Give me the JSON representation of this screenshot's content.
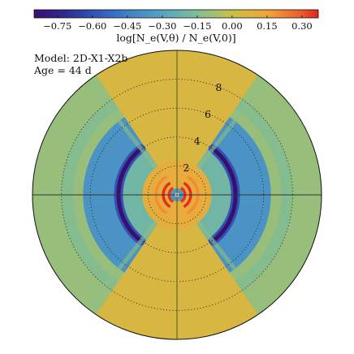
{
  "chart_data": {
    "type": "heatmap",
    "projection": "polar",
    "colorbar": {
      "location": "top",
      "label": "log[N_e(V,θ) / N_e(V,0)]",
      "range": [
        -0.85,
        0.37
      ],
      "ticks": [
        -0.75,
        -0.6,
        -0.45,
        -0.3,
        -0.15,
        0.0,
        0.15,
        0.3
      ],
      "tick_labels": [
        "−0.75",
        "−0.60",
        "−0.45",
        "−0.30",
        "−0.15",
        "0.00",
        "0.15",
        "0.30"
      ],
      "colormap_stops": [
        [
          -0.85,
          "#3b0f70"
        ],
        [
          -0.72,
          "#2c2a8c"
        ],
        [
          -0.6,
          "#2f52b4"
        ],
        [
          -0.45,
          "#3f80c9"
        ],
        [
          -0.3,
          "#55a4c0"
        ],
        [
          -0.15,
          "#7fbe96"
        ],
        [
          0.0,
          "#cbbf45"
        ],
        [
          0.15,
          "#f0a63a"
        ],
        [
          0.3,
          "#ee5a2c"
        ],
        [
          0.37,
          "#e1251f"
        ]
      ]
    },
    "annotation": [
      "Model: 2D-X1-X2b",
      "Age = 44 d"
    ],
    "radial_axis": {
      "quantity": "velocity V",
      "max": 10,
      "grid_rings": [
        2,
        4,
        6,
        8
      ],
      "ring_labels": [
        "2",
        "4",
        "6",
        "8"
      ],
      "grid": "dotted"
    },
    "axes_lines": [
      "vertical",
      "horizontal"
    ],
    "structure": {
      "symmetry_axis": "vertical",
      "polar_cone_half_angle_deg": 34,
      "background_value": -0.1,
      "outer_lobe_value": -0.37,
      "polar_value": 0.05,
      "inner_core_radius": 2.4,
      "inner_core_value": 0.1,
      "dark_arc_radius": 4.05,
      "dark_arc_value": -0.85,
      "dark_arc_half_angle_deg": 52,
      "blue_band": [
        3.8,
        6.5
      ],
      "green_shell_outer": 7.6,
      "central_rings": [
        {
          "r": 0.55,
          "v": 0.35
        },
        {
          "r": 0.95,
          "v": 0.36
        },
        {
          "r": 1.45,
          "v": 0.2
        }
      ]
    }
  }
}
